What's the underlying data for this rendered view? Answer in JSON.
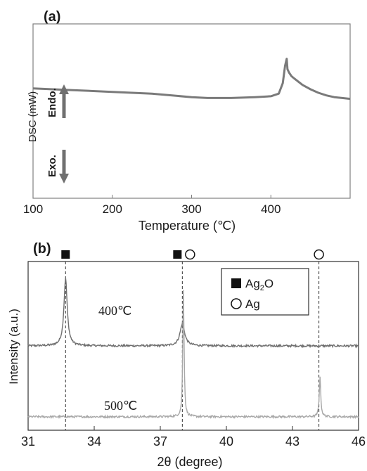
{
  "chart_data": [
    {
      "panel": "(a)",
      "type": "line",
      "xlabel": "Temperature (℃)",
      "ylabel": "DSC (mW)",
      "xlim": [
        100,
        500
      ],
      "xticks": [
        100,
        200,
        300,
        400
      ],
      "grid": false,
      "annotations": {
        "up": "Endo.",
        "down": "Exo."
      },
      "series": [
        {
          "color": "#7a7a7a",
          "x": [
            100,
            150,
            200,
            250,
            300,
            320,
            350,
            380,
            400,
            410,
            415,
            418,
            420,
            421,
            423,
            426,
            430,
            440,
            450,
            460,
            470,
            480,
            490,
            500
          ],
          "y": [
            0.63,
            0.62,
            0.61,
            0.6,
            0.58,
            0.575,
            0.575,
            0.58,
            0.585,
            0.6,
            0.66,
            0.76,
            0.8,
            0.74,
            0.72,
            0.7,
            0.685,
            0.65,
            0.625,
            0.605,
            0.59,
            0.58,
            0.575,
            0.57
          ]
        }
      ]
    },
    {
      "panel": "(b)",
      "type": "line",
      "xlabel": "2θ (degree)",
      "ylabel": "Intensity (a.u.)",
      "xlim": [
        31,
        46
      ],
      "xticks": [
        31,
        34,
        37,
        40,
        43,
        46
      ],
      "grid": false,
      "legend": {
        "position": "top-right",
        "entries": [
          {
            "marker": "filled-square",
            "label": "Ag",
            "sub": "2",
            "suffix": "O"
          },
          {
            "marker": "open-circle",
            "label": "Ag"
          }
        ]
      },
      "reference_lines": [
        {
          "x": 32.7,
          "marker": "filled-square"
        },
        {
          "x": 38.0,
          "marker": "filled-square",
          "marker2": "open-circle"
        },
        {
          "x": 44.2,
          "marker": "open-circle"
        }
      ],
      "series": [
        {
          "name": "400℃",
          "color": "#6e6e6e",
          "baseline": 0.5,
          "peaks": [
            {
              "x": 32.7,
              "height": 0.4,
              "width": 0.09
            },
            {
              "x": 38.0,
              "height": 0.13,
              "width": 0.13
            }
          ]
        },
        {
          "name": "500℃",
          "color": "#a8a8a8",
          "baseline": 0.08,
          "peaks": [
            {
              "x": 38.05,
              "height": 0.75,
              "width": 0.035
            },
            {
              "x": 44.25,
              "height": 0.24,
              "width": 0.04
            }
          ]
        }
      ]
    }
  ]
}
